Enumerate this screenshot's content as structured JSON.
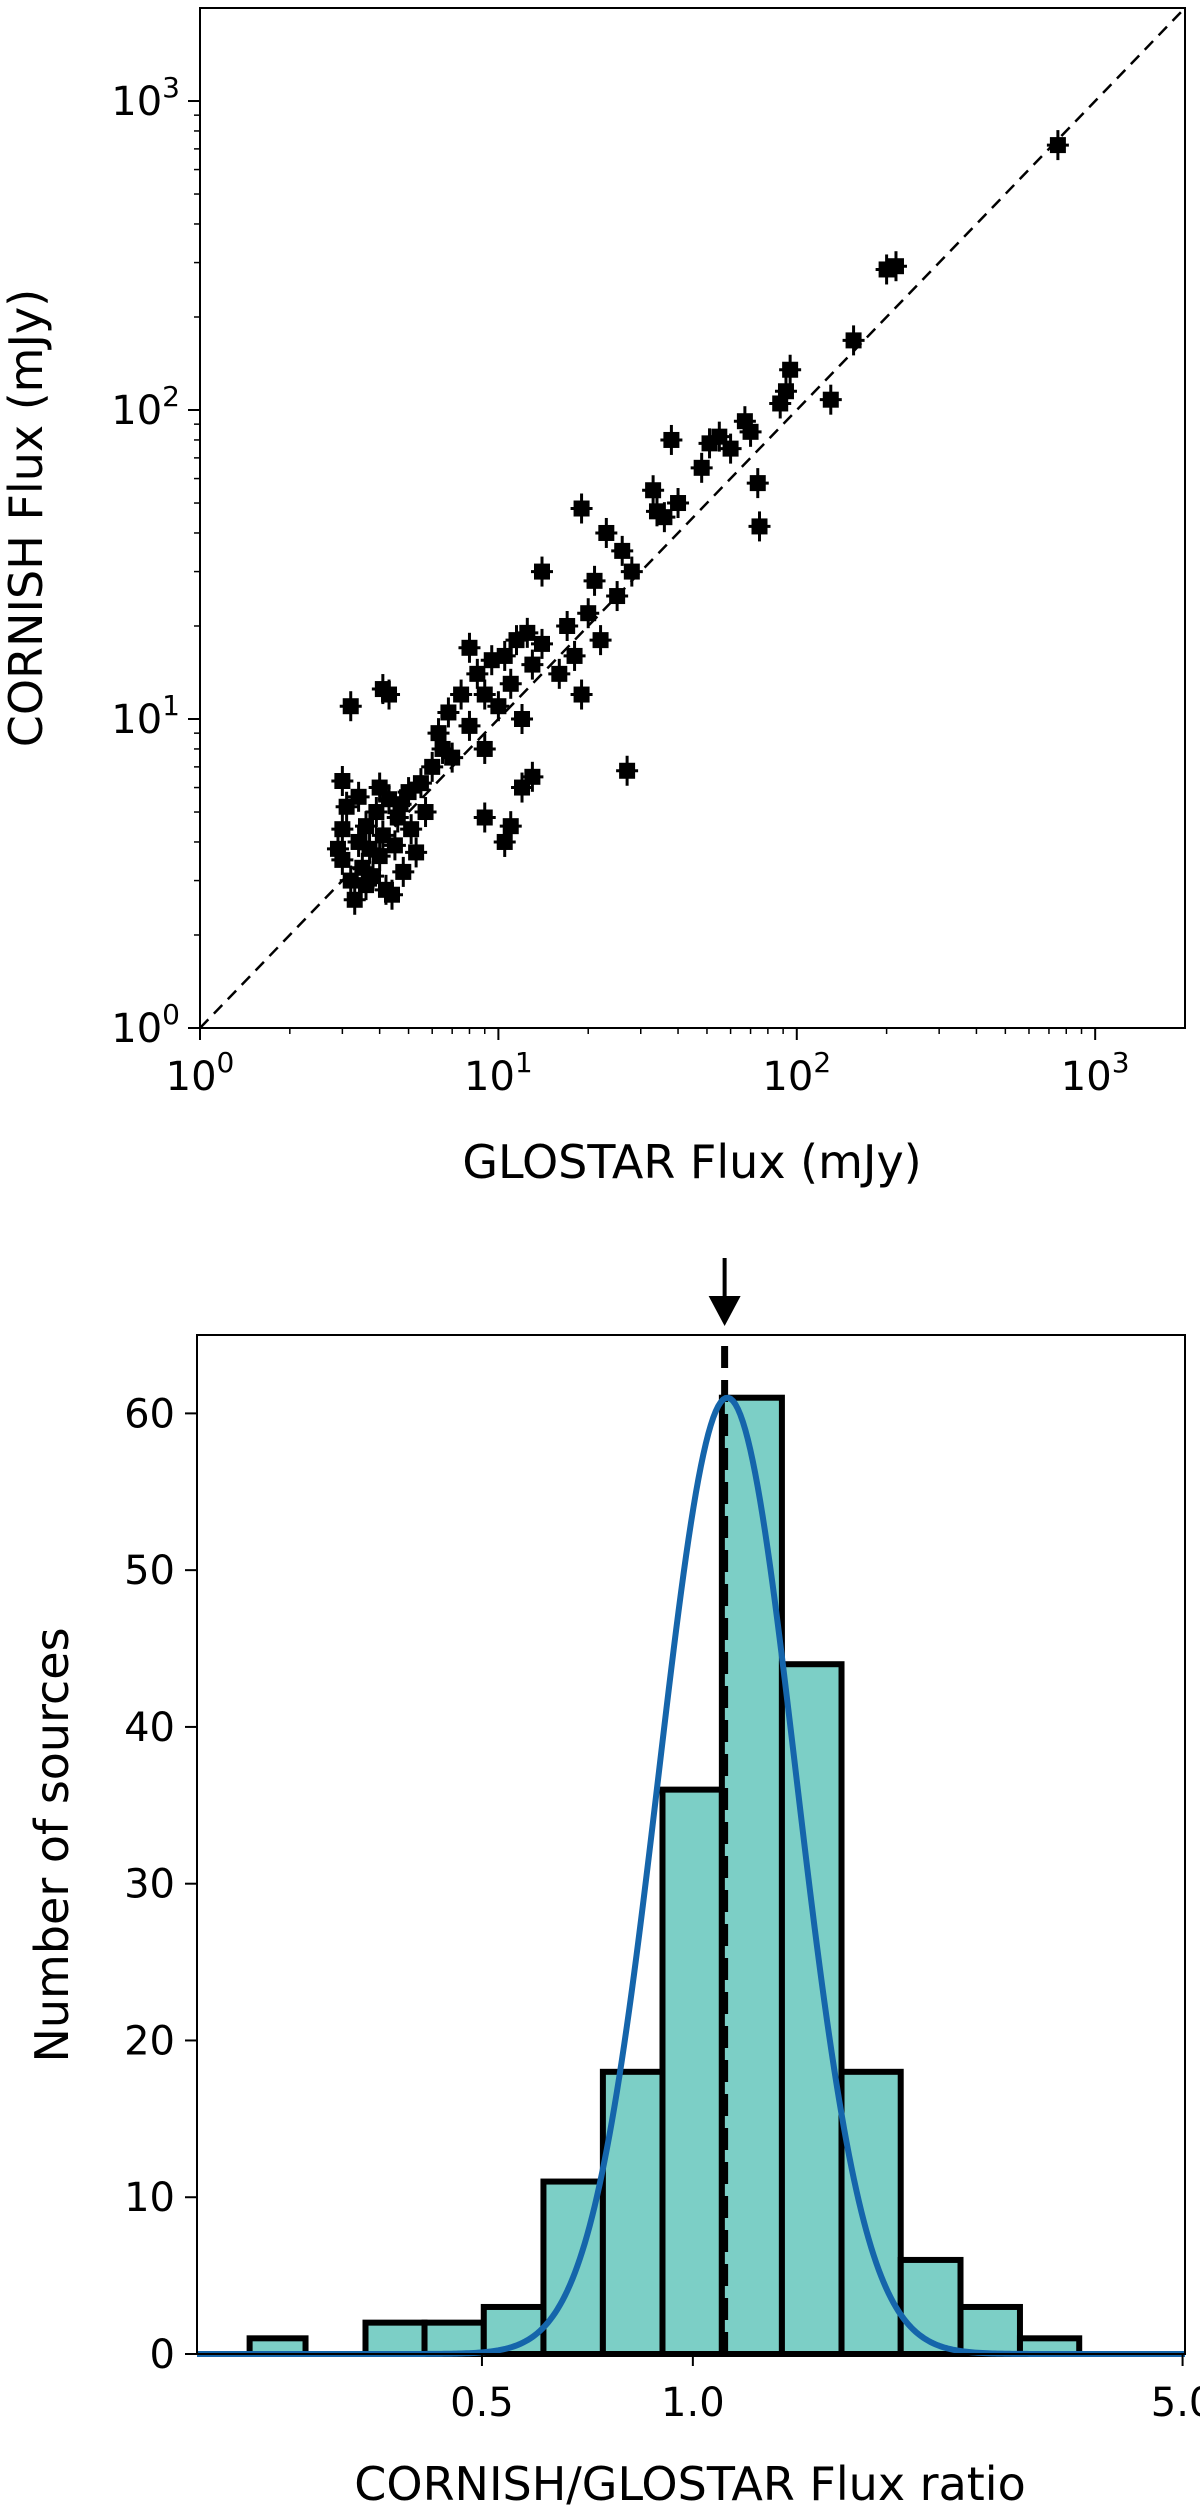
{
  "chart_data": [
    {
      "type": "scatter",
      "xscale": "log",
      "yscale": "log",
      "xlabel": "GLOSTAR Flux (mJy)",
      "ylabel": "CORNISH Flux (mJy)",
      "xlim": [
        1,
        2000
      ],
      "ylim": [
        1,
        2000
      ],
      "grid": false,
      "xticks": [
        {
          "base": "10",
          "exp": "0",
          "value": 1
        },
        {
          "base": "10",
          "exp": "1",
          "value": 10
        },
        {
          "base": "10",
          "exp": "2",
          "value": 100
        },
        {
          "base": "10",
          "exp": "3",
          "value": 1000
        }
      ],
      "yticks": [
        {
          "base": "10",
          "exp": "0",
          "value": 1
        },
        {
          "base": "10",
          "exp": "1",
          "value": 10
        },
        {
          "base": "10",
          "exp": "2",
          "value": 100
        },
        {
          "base": "10",
          "exp": "3",
          "value": 1000
        }
      ],
      "reference_line": {
        "relation": "y = x",
        "style": "dashed"
      },
      "points": [
        [
          3.0,
          3.5
        ],
        [
          3.2,
          3.0
        ],
        [
          3.4,
          4.0
        ],
        [
          3.5,
          3.3
        ],
        [
          3.6,
          4.5
        ],
        [
          3.7,
          3.8
        ],
        [
          3.8,
          3.1
        ],
        [
          3.9,
          5.0
        ],
        [
          4.0,
          3.6
        ],
        [
          4.1,
          4.2
        ],
        [
          4.2,
          2.8
        ],
        [
          4.3,
          5.5
        ],
        [
          4.5,
          3.9
        ],
        [
          4.6,
          4.8
        ],
        [
          4.8,
          3.2
        ],
        [
          5.0,
          5.8
        ],
        [
          5.1,
          4.4
        ],
        [
          5.3,
          3.7
        ],
        [
          5.5,
          6.2
        ],
        [
          5.7,
          5.0
        ],
        [
          3.0,
          6.3
        ],
        [
          3.1,
          5.2
        ],
        [
          3.3,
          2.6
        ],
        [
          2.9,
          3.8
        ],
        [
          3.0,
          4.4
        ],
        [
          3.4,
          5.6
        ],
        [
          3.6,
          2.9
        ],
        [
          4.0,
          6.0
        ],
        [
          4.4,
          2.7
        ],
        [
          4.7,
          5.3
        ],
        [
          3.2,
          11.0
        ],
        [
          4.1,
          12.5
        ],
        [
          4.3,
          12.0
        ],
        [
          6.0,
          7.0
        ],
        [
          6.3,
          9.0
        ],
        [
          6.5,
          8.0
        ],
        [
          6.8,
          10.5
        ],
        [
          7.0,
          7.5
        ],
        [
          7.5,
          12.0
        ],
        [
          8.0,
          9.5
        ],
        [
          8.5,
          14.0
        ],
        [
          9.0,
          8.0
        ],
        [
          9.5,
          15.5
        ],
        [
          10.0,
          11.0
        ],
        [
          10.5,
          16.0
        ],
        [
          11.0,
          13.0
        ],
        [
          11.5,
          18.0
        ],
        [
          12.0,
          10.0
        ],
        [
          13.0,
          15.0
        ],
        [
          14.0,
          17.5
        ],
        [
          8.0,
          17.0
        ],
        [
          9.0,
          12.0
        ],
        [
          12.5,
          19.0
        ],
        [
          16.0,
          14.0
        ],
        [
          17.0,
          20.0
        ],
        [
          18.0,
          16.0
        ],
        [
          9.0,
          4.8
        ],
        [
          10.5,
          4.0
        ],
        [
          11.0,
          4.5
        ],
        [
          12.0,
          6.0
        ],
        [
          13.0,
          6.5
        ],
        [
          14.0,
          30.0
        ],
        [
          19.0,
          12.0
        ],
        [
          20.0,
          22.0
        ],
        [
          21.0,
          28.0
        ],
        [
          22.0,
          18.0
        ],
        [
          23.0,
          40.0
        ],
        [
          25.0,
          25.0
        ],
        [
          26.0,
          35.0
        ],
        [
          27.0,
          6.8
        ],
        [
          19.0,
          48.0
        ],
        [
          28.0,
          30.0
        ],
        [
          33.0,
          55.0
        ],
        [
          34.0,
          47.0
        ],
        [
          36.0,
          45.0
        ],
        [
          38.0,
          80.0
        ],
        [
          40.0,
          50.0
        ],
        [
          48.0,
          65.0
        ],
        [
          51.0,
          78.0
        ],
        [
          55.0,
          82.0
        ],
        [
          60.0,
          75.0
        ],
        [
          67.0,
          92.0
        ],
        [
          70.0,
          85.0
        ],
        [
          74.0,
          58.0
        ],
        [
          75.0,
          42.0
        ],
        [
          88.0,
          105.0
        ],
        [
          92.0,
          115.0
        ],
        [
          95.0,
          135.0
        ],
        [
          130.0,
          108.0
        ],
        [
          155.0,
          168.0
        ],
        [
          200.0,
          285.0
        ],
        [
          215.0,
          292.0
        ],
        [
          750.0,
          720.0
        ]
      ]
    },
    {
      "type": "bar",
      "xscale": "log",
      "xlabel": "CORNISH/GLOSTAR Flux ratio",
      "ylabel": "Number of sources",
      "ylim": [
        0,
        65
      ],
      "grid": false,
      "xtick_labels": [
        "0.5",
        "1.0",
        "5.0"
      ],
      "xtick_values": [
        0.5,
        1.0,
        5.0
      ],
      "ytick_labels": [
        "0",
        "10",
        "20",
        "30",
        "40",
        "50",
        "60"
      ],
      "ytick_values": [
        0,
        10,
        20,
        30,
        40,
        50,
        60
      ],
      "bin_edges": [
        0.233,
        0.28,
        0.341,
        0.414,
        0.503,
        0.612,
        0.744,
        0.905,
        1.1,
        1.34,
        1.63,
        1.98,
        2.41,
        2.93,
        3.56
      ],
      "values": [
        1,
        0,
        2,
        2,
        3,
        11,
        18,
        36,
        61,
        44,
        18,
        6,
        3,
        1
      ],
      "bar_color": "#7ccfc6",
      "fit_curve": {
        "type": "gaussian",
        "peak": 61,
        "center": 1.12,
        "sigma_log10": 0.098,
        "color": "#1565ab"
      },
      "marker_line": {
        "x": 1.11,
        "style": "dashed",
        "arrow": "down"
      }
    }
  ]
}
